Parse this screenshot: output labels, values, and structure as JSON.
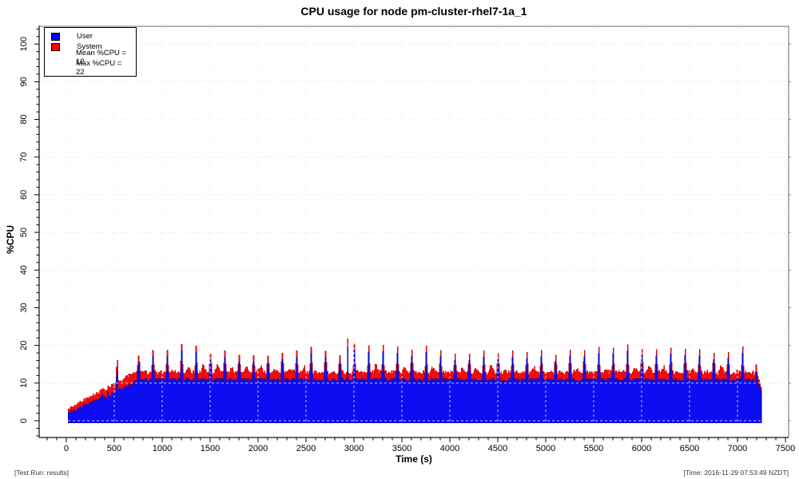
{
  "header": {
    "title": "CPU usage for node pm-cluster-rhel7-1a_1"
  },
  "footer": {
    "left": "[Test Run: results]",
    "right": "[Time: 2016-11-29 07:53:49 NZDT]"
  },
  "legend": {
    "items": [
      {
        "label": "User",
        "color": "#0000ff"
      },
      {
        "label": "System",
        "color": "#ff0000"
      }
    ],
    "stats": [
      {
        "label": "Mean %CPU = 12"
      },
      {
        "label": "Max %CPU = 22"
      }
    ]
  },
  "chart_data": {
    "type": "area",
    "stacked": true,
    "title": "CPU usage for node pm-cluster-rhel7-1a_1",
    "xlabel": "Time (s)",
    "ylabel": "%CPU",
    "xlim": [
      -283,
      7533
    ],
    "ylim": [
      -4.45,
      104.7
    ],
    "x_ticks": [
      0,
      500,
      1000,
      1500,
      2000,
      2500,
      3000,
      3500,
      4000,
      4500,
      5000,
      5500,
      6000,
      6500,
      7000,
      7500
    ],
    "y_ticks": [
      0,
      10,
      20,
      30,
      40,
      50,
      60,
      70,
      80,
      90,
      100
    ],
    "x_minor_step": 100,
    "y_minor_step": 2,
    "grid": true,
    "legend_position": "top-left",
    "series": [
      {
        "name": "User",
        "color": "#0d0df2",
        "edge": "#0000b8"
      },
      {
        "name": "System",
        "color": "#f20c0c",
        "edge": "#c80000"
      }
    ],
    "stats": {
      "mean_pct_cpu": 12,
      "max_pct_cpu": 22
    },
    "colors": {
      "grid": "#cfcfcf",
      "grid_over_data": "#ffffff",
      "frame": "#8c8c8c",
      "axis": "#000000",
      "right_tick": "#8c8c8c"
    },
    "sampling": {
      "t_start": 20,
      "t_end": 7240,
      "t_step": 10
    },
    "profile": {
      "seed": 20161129,
      "ramp": {
        "t0": 20,
        "t1": 700,
        "total_start": 3.1,
        "total_end": 12.6,
        "sys_start": 1.1,
        "sys_end": 2.8,
        "noise": 0.55
      },
      "plateau": {
        "user_mean": 10.85,
        "user_noise": 0.45,
        "sys_mean": 1.95,
        "sys_noise": 0.35
      },
      "spikes": {
        "start": 750,
        "end": 7200,
        "interval": 150,
        "user_min": 15.4,
        "user_max": 18.9,
        "sys_at_spike": 1.7,
        "shoulder": 12.6
      },
      "sys_bumps": {
        "offset": 825,
        "interval": 150,
        "probability": 0.55,
        "amp_min": 0.7,
        "amp_max": 1.9,
        "half_width": 25
      },
      "rampdown": {
        "t0": 7200,
        "t1": 7240,
        "user_end": 8.0,
        "sys_end": 1.0
      },
      "special_spikes": [
        {
          "t": 520,
          "user": 11.5,
          "sys": 2.8
        },
        {
          "t": 530,
          "user": 13.4,
          "sys": 2.7
        },
        {
          "t": 2930,
          "user": 19.9,
          "sys": 1.9
        }
      ]
    }
  }
}
